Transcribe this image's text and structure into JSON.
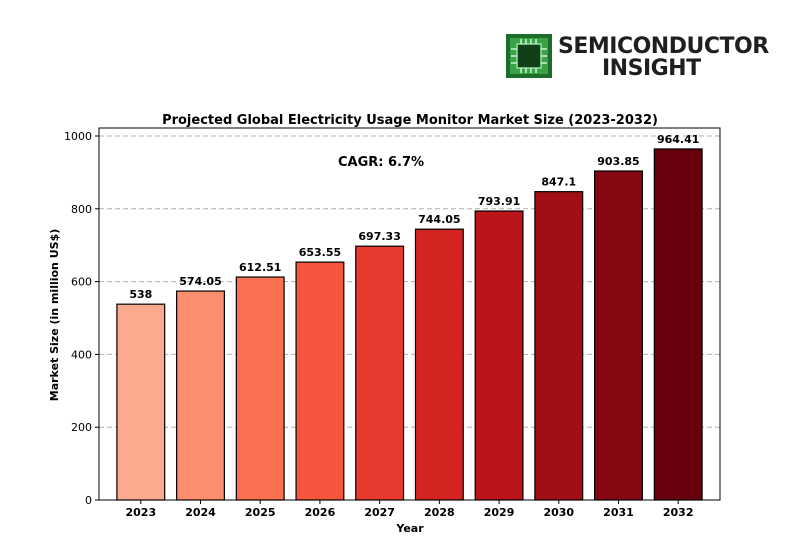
{
  "logo": {
    "line1": "SEMICONDUCTOR",
    "line2": "INSIGHT",
    "icon": "chip-icon",
    "accent": "#2e8b3a"
  },
  "chart_data": {
    "type": "bar",
    "title": "Projected Global Electricity Usage Monitor Market Size (2023-2032)",
    "xlabel": "Year",
    "ylabel": "Market Size (in million US$)",
    "categories": [
      "2023",
      "2024",
      "2025",
      "2026",
      "2027",
      "2028",
      "2029",
      "2030",
      "2031",
      "2032"
    ],
    "values": [
      538,
      574.05,
      612.51,
      653.55,
      697.33,
      744.05,
      793.91,
      847.1,
      903.85,
      964.41
    ],
    "value_labels": [
      "538",
      "574.05",
      "612.51",
      "653.55",
      "697.33",
      "744.05",
      "793.91",
      "847.1",
      "903.85",
      "964.41"
    ],
    "ylim": [
      0,
      1000
    ],
    "yticks": [
      0,
      200,
      400,
      600,
      800,
      1000
    ],
    "grid": "horizontal dashed",
    "annotation": "CAGR: 6.7%",
    "colors": [
      "#fcaa8d",
      "#fc8d6d",
      "#fb7050",
      "#f5553c",
      "#e83a2f",
      "#d42421",
      "#bb151a",
      "#a10f15",
      "#850813",
      "#67000d"
    ]
  }
}
